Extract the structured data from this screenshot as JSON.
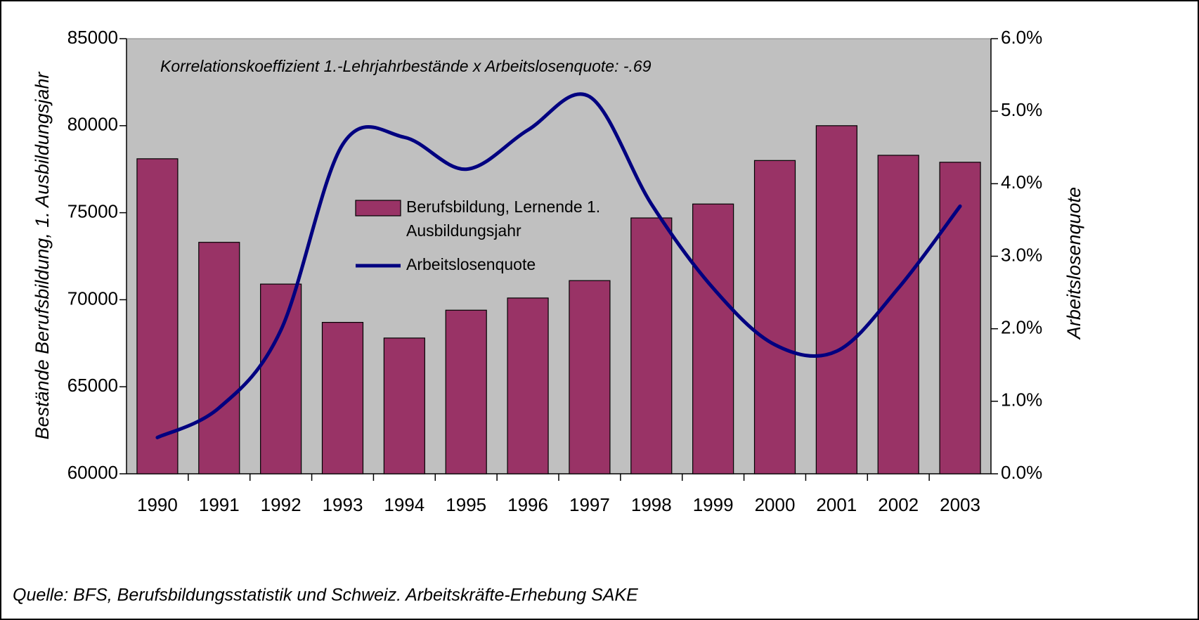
{
  "chart_data": {
    "type": "bar-line",
    "annotation": "Korrelationskoeffizient 1.-Lehrjahrbestände x Arbeitslosenquote: -.69",
    "source": "Quelle: BFS, Berufsbildungsstatistik und Schweiz. Arbeitskräfte-Erhebung SAKE",
    "ylabel": "Bestände Berufsbildung, 1. Ausbildungsjahr",
    "y2label": "Arbeitslosenquote",
    "categories": [
      "1990",
      "1991",
      "1992",
      "1993",
      "1994",
      "1995",
      "1996",
      "1997",
      "1998",
      "1999",
      "2000",
      "2001",
      "2002",
      "2003"
    ],
    "series": [
      {
        "name": "Berufsbildung, Lernende 1. Ausbildungsjahr",
        "type": "bar",
        "color": "#993366",
        "values": [
          78100,
          73300,
          70900,
          68700,
          67800,
          69400,
          70100,
          71100,
          74700,
          75500,
          78000,
          80000,
          78300,
          77900
        ]
      },
      {
        "name": "Arbeitslosenquote",
        "type": "line",
        "axis": "y2",
        "color": "#000080",
        "values": [
          0.5,
          0.91,
          1.98,
          4.54,
          4.64,
          4.2,
          4.74,
          5.2,
          3.72,
          2.56,
          1.78,
          1.69,
          2.56,
          3.69
        ]
      }
    ],
    "ylim": [
      60000,
      85000
    ],
    "yticks": [
      60000,
      65000,
      70000,
      75000,
      80000,
      85000
    ],
    "y2lim": [
      0,
      6
    ],
    "y2ticks": [
      {
        "value": 0,
        "label": "0.0%"
      },
      {
        "value": 1,
        "label": "1.0%"
      },
      {
        "value": 2,
        "label": "2.0%"
      },
      {
        "value": 3,
        "label": "3.0%"
      },
      {
        "value": 4,
        "label": "4.0%"
      },
      {
        "value": 5,
        "label": "5.0%"
      },
      {
        "value": 6,
        "label": "6.0%"
      }
    ],
    "plot_background": "#c0c0c0"
  }
}
